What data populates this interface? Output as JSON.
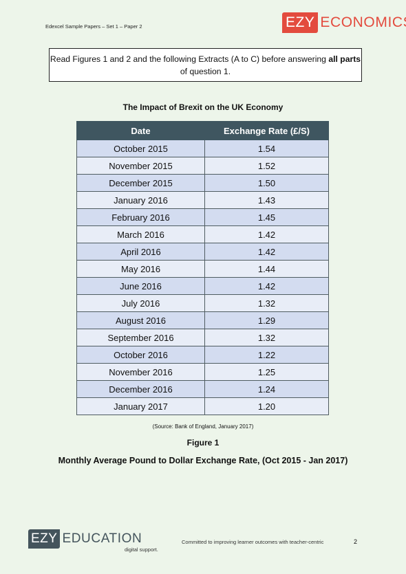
{
  "header": {
    "paper_ref": "Edexcel Sample Papers – Set 1 – Paper 2",
    "logo_box": "EZY",
    "logo_word": "ECONOMICS"
  },
  "instruction": {
    "text_before": "Read Figures 1 and 2 and the following Extracts (A to C) before answering ",
    "bold": "all parts",
    "text_after": " of question 1."
  },
  "table": {
    "title": "The Impact of Brexit on the UK Economy",
    "headers": [
      "Date",
      "Exchange Rate (£/S)"
    ],
    "rows": [
      [
        "October 2015",
        "1.54"
      ],
      [
        "November 2015",
        "1.52"
      ],
      [
        "December 2015",
        "1.50"
      ],
      [
        "January 2016",
        "1.43"
      ],
      [
        "February 2016",
        "1.45"
      ],
      [
        "March 2016",
        "1.42"
      ],
      [
        "April 2016",
        "1.42"
      ],
      [
        "May 2016",
        "1.44"
      ],
      [
        "June 2016",
        "1.42"
      ],
      [
        "July 2016",
        "1.32"
      ],
      [
        "August 2016",
        "1.29"
      ],
      [
        "September 2016",
        "1.32"
      ],
      [
        "October 2016",
        "1.22"
      ],
      [
        "November 2016",
        "1.25"
      ],
      [
        "December 2016",
        "1.24"
      ],
      [
        "January 2017",
        "1.20"
      ]
    ]
  },
  "source": "(Source: Bank of England, January 2017)",
  "figure_label": "Figure 1",
  "figure_caption": "Monthly Average Pound to Dollar Exchange Rate, (Oct 2015 - Jan 2017)",
  "footer": {
    "logo_box": "EZY",
    "logo_word": "EDUCATION",
    "tagline": "Committed to improving learner outcomes with teacher-centric",
    "tagline_sub": "digital support.",
    "page_number": "2"
  },
  "colors": {
    "brand_red": "#e34b3e",
    "table_header": "#3f5660",
    "row_dark": "#d3dcf0",
    "row_light": "#e8edf7",
    "page_bg": "#edf5ea"
  }
}
